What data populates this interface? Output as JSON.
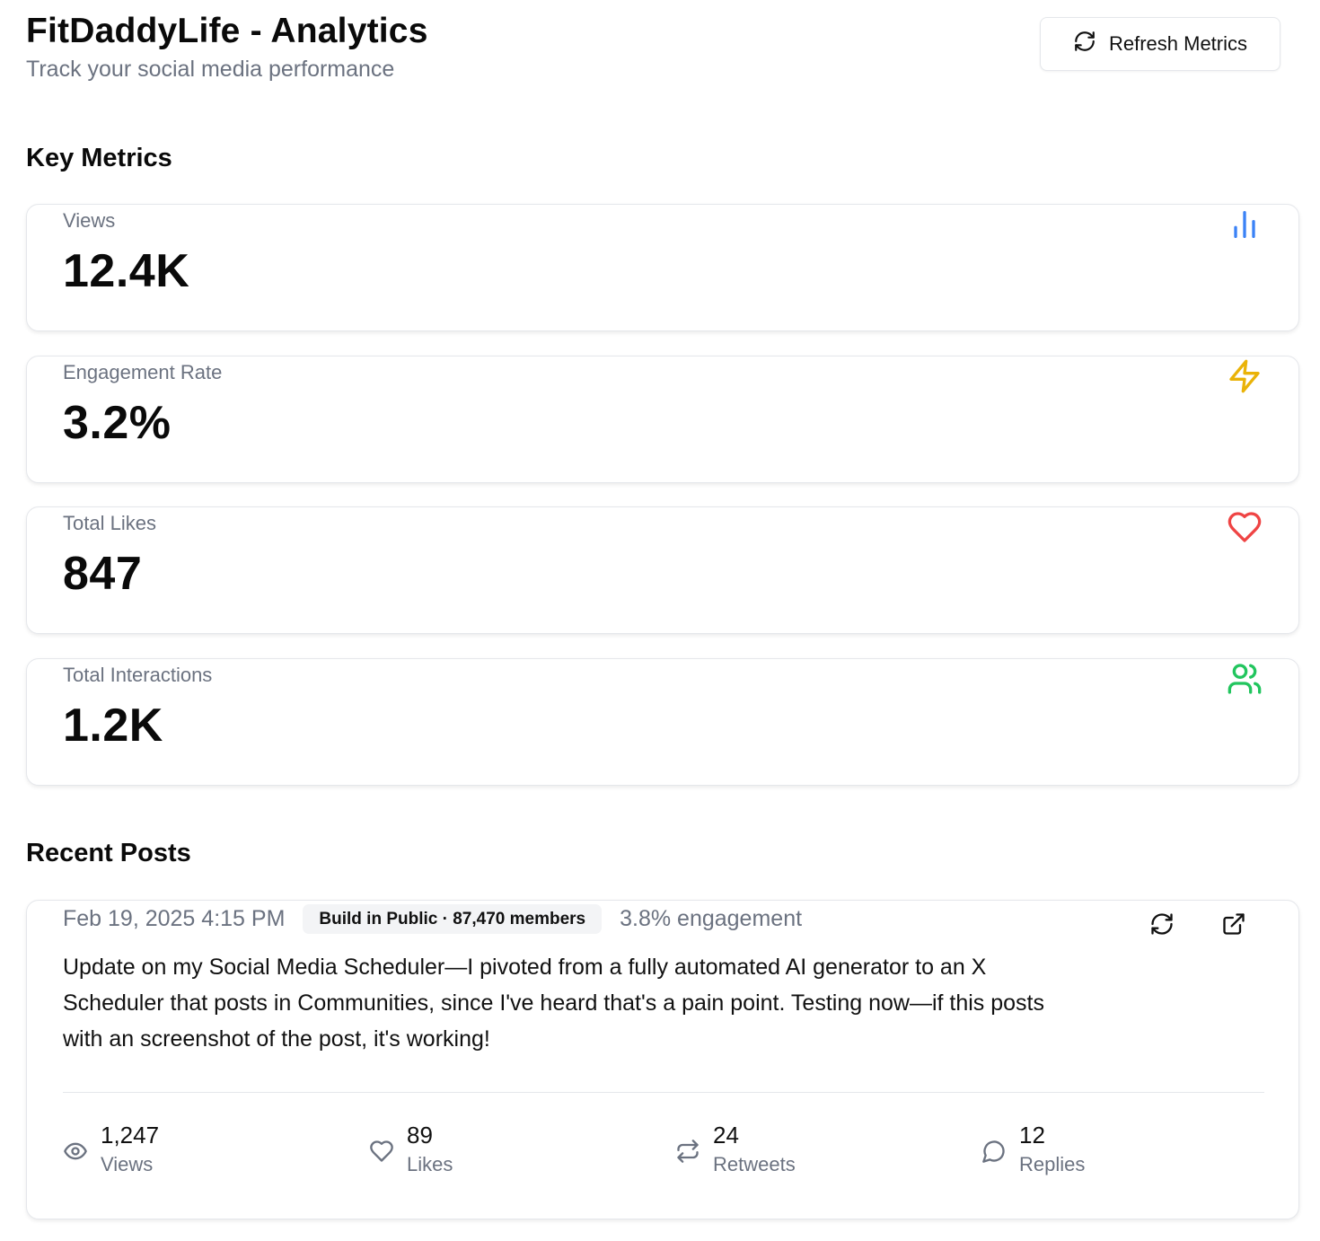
{
  "header": {
    "title": "FitDaddyLife - Analytics",
    "subtitle": "Track your social media performance",
    "refresh_label": "Refresh Metrics"
  },
  "sections": {
    "key_metrics": "Key Metrics",
    "recent_posts": "Recent Posts"
  },
  "metrics": [
    {
      "label": "Views",
      "value": "12.4K",
      "icon": "bar-chart-icon",
      "color": "#3b82f6"
    },
    {
      "label": "Engagement Rate",
      "value": "3.2%",
      "icon": "zap-icon",
      "color": "#eab308"
    },
    {
      "label": "Total Likes",
      "value": "847",
      "icon": "heart-icon",
      "color": "#ef4444"
    },
    {
      "label": "Total Interactions",
      "value": "1.2K",
      "icon": "users-icon",
      "color": "#22c55e"
    }
  ],
  "post": {
    "date": "Feb 19, 2025 4:15 PM",
    "community": "Build in Public · 87,470 members",
    "engagement": "3.8% engagement",
    "text": "Update on my Social Media Scheduler—I pivoted from a fully automated AI generator to an X Scheduler that posts in Communities, since I've heard that's a pain point. Testing now—if this posts with an screenshot of the post, it's working!",
    "stats": [
      {
        "value": "1,247",
        "label": "Views",
        "icon": "eye-icon"
      },
      {
        "value": "89",
        "label": "Likes",
        "icon": "heart-icon"
      },
      {
        "value": "24",
        "label": "Retweets",
        "icon": "repeat-icon"
      },
      {
        "value": "12",
        "label": "Replies",
        "icon": "message-circle-icon"
      }
    ]
  }
}
